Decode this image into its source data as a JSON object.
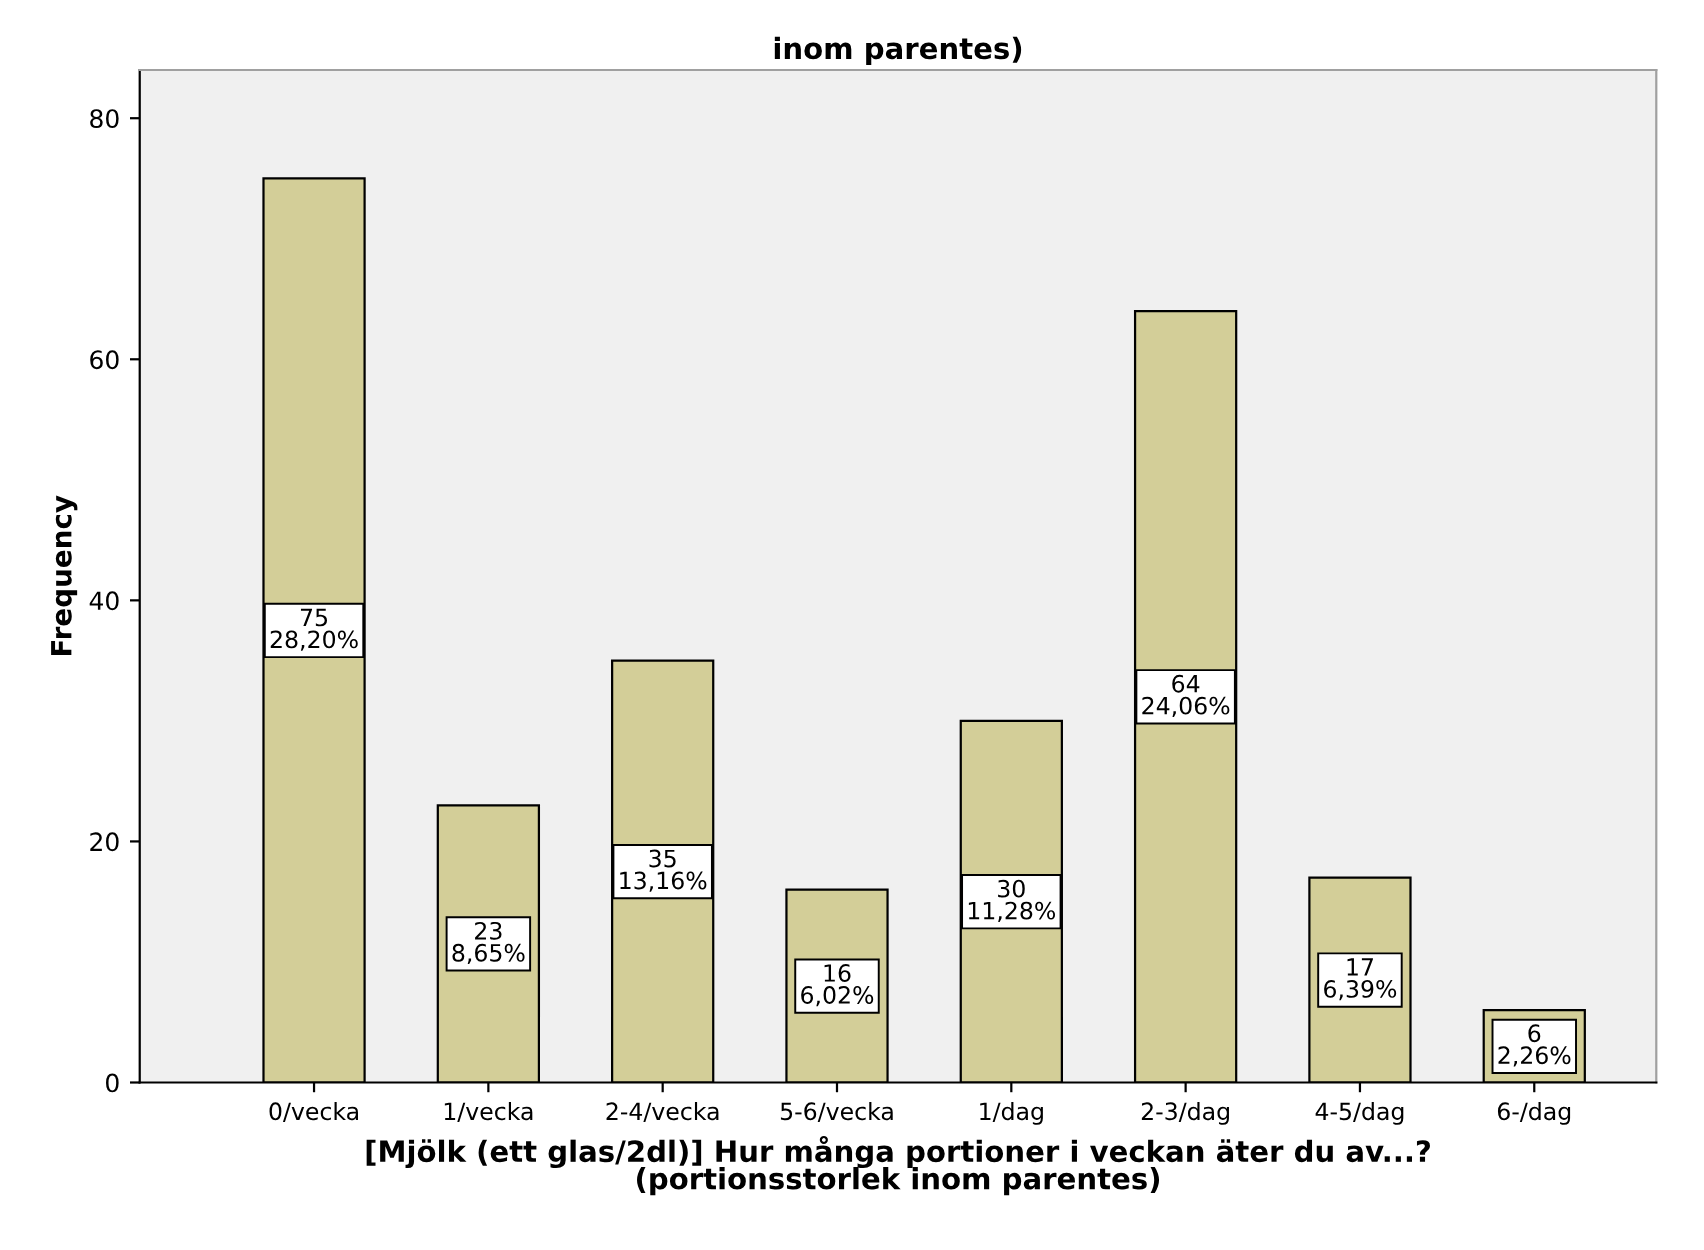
{
  "chart_data": {
    "type": "bar",
    "title": "inom parentes)",
    "xlabel": "[Mjölk (ett glas/2dl)] Hur många portioner i veckan äter du av...?\n(portionsstorlek inom parentes)",
    "ylabel": "Frequency",
    "categories": [
      "0/vecka",
      "1/vecka",
      "2-4/vecka",
      "5-6/vecka",
      "1/dag",
      "2-3/dag",
      "4-5/dag",
      "6-/dag"
    ],
    "values": [
      75,
      23,
      35,
      16,
      30,
      64,
      17,
      6
    ],
    "value_labels": [
      "75\n28,20%",
      "23\n8,65%",
      "35\n13,16%",
      "16\n6,02%",
      "30\n11,28%",
      "64\n24,06%",
      "17\n6,39%",
      "6\n2,26%"
    ],
    "color": "#d3ce98",
    "ylim": [
      0,
      84
    ],
    "yticks": [
      0,
      20,
      40,
      60,
      80
    ],
    "grid": false
  }
}
